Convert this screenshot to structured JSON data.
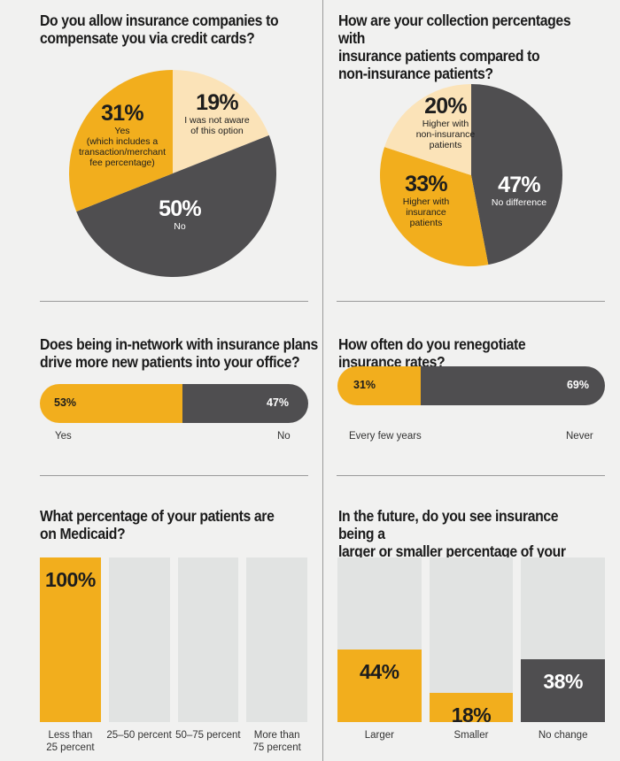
{
  "colors": {
    "orange": "#f2ae1d",
    "dark": "#4f4e50",
    "cream": "#fbe3b8",
    "track": "#e1e3e2",
    "light_text": "#ffffff",
    "dark_text": "#1d1d1d"
  },
  "chart_data": [
    {
      "type": "pie",
      "title": "Do you allow insurance companies to\ncompensate you via credit cards?",
      "slices": [
        {
          "percent_label": "19%",
          "label": "I was not aware\nof this option",
          "value": 19,
          "color": "cream"
        },
        {
          "percent_label": "50%",
          "label": "No",
          "value": 50,
          "color": "dark"
        },
        {
          "percent_label": "31%",
          "label": "Yes\n(which includes a\ntransaction/merchant\nfee percentage)",
          "value": 31,
          "color": "orange"
        }
      ]
    },
    {
      "type": "pie",
      "title": "How are your collection percentages with\ninsurance patients compared to\nnon-insurance patients?",
      "slices": [
        {
          "percent_label": "47%",
          "label": "No difference",
          "value": 47,
          "color": "dark"
        },
        {
          "percent_label": "33%",
          "label": "Higher with\ninsurance\npatients",
          "value": 33,
          "color": "orange"
        },
        {
          "percent_label": "20%",
          "label": "Higher with\nnon-insurance\npatients",
          "value": 20,
          "color": "cream"
        }
      ]
    },
    {
      "type": "bar",
      "orientation": "stacked-horizontal",
      "title": "Does being in-network with insurance plans\ndrive more new patients into your office?",
      "categories": [
        "Yes",
        "No"
      ],
      "values": [
        53,
        47
      ],
      "value_labels": [
        "53%",
        "47%"
      ]
    },
    {
      "type": "bar",
      "orientation": "stacked-horizontal",
      "title": "How often do you renegotiate insurance rates?",
      "categories": [
        "Every few years",
        "Never"
      ],
      "values": [
        31,
        69
      ],
      "value_labels": [
        "31%",
        "69%"
      ]
    },
    {
      "type": "bar",
      "title": "What percentage of your patients are\non Medicaid?",
      "categories": [
        "Less than\n25 percent",
        "25–50 percent",
        "50–75 percent",
        "More than\n75 percent"
      ],
      "values": [
        100,
        0,
        0,
        0
      ],
      "value_labels": [
        "100%",
        "",
        "",
        ""
      ],
      "ylim": [
        0,
        100
      ]
    },
    {
      "type": "bar",
      "title": "In the future, do you see insurance being a\nlarger or smaller percentage of your practice?",
      "categories": [
        "Larger",
        "Smaller",
        "No change"
      ],
      "values": [
        44,
        18,
        38
      ],
      "value_labels": [
        "44%",
        "18%",
        "38%"
      ],
      "colors": [
        "orange",
        "orange",
        "dark"
      ],
      "ylim": [
        0,
        100
      ]
    }
  ]
}
